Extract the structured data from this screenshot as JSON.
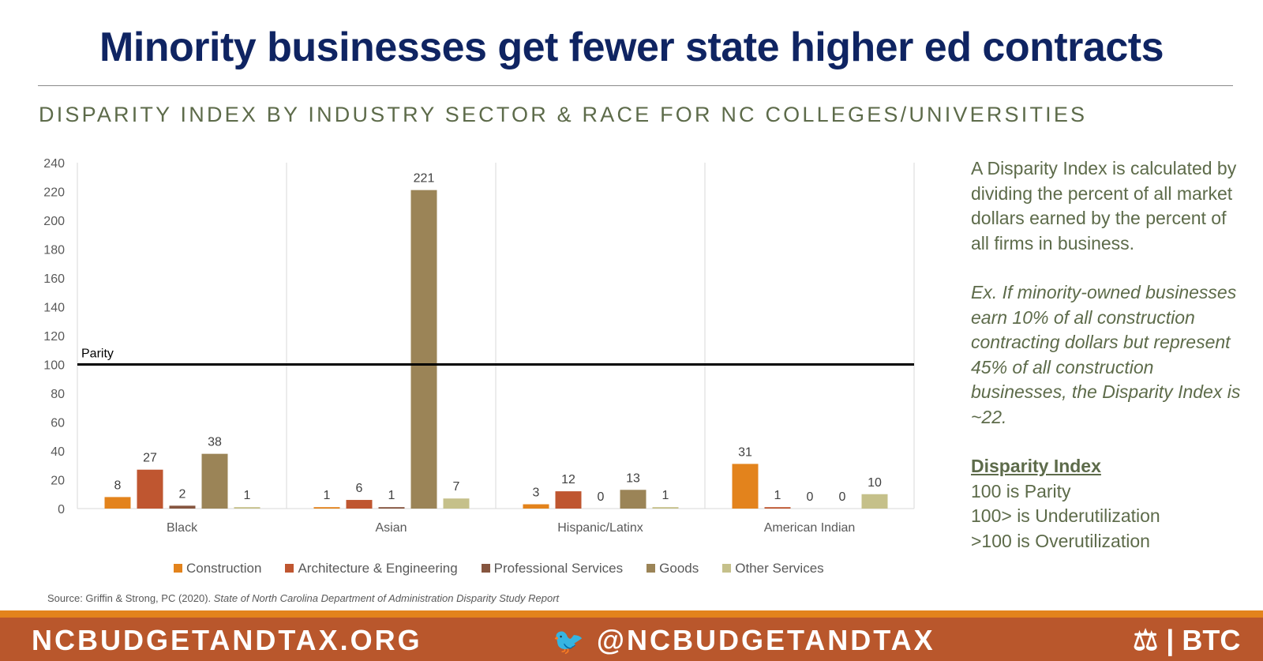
{
  "title": "Minority businesses get fewer state higher ed contracts",
  "subtitle": "DISPARITY INDEX BY INDUSTRY SECTOR & RACE FOR NC COLLEGES/UNIVERSITIES",
  "chart_data": {
    "type": "bar",
    "categories": [
      "Black",
      "Asian",
      "Hispanic/Latinx",
      "American Indian"
    ],
    "series": [
      {
        "name": "Construction",
        "color": "#e3831c",
        "values": [
          8,
          1,
          3,
          31
        ]
      },
      {
        "name": "Architecture & Engineering",
        "color": "#bf5630",
        "values": [
          27,
          6,
          12,
          1
        ]
      },
      {
        "name": "Professional Services",
        "color": "#86553f",
        "values": [
          2,
          1,
          0,
          0
        ]
      },
      {
        "name": "Goods",
        "color": "#9b8457",
        "values": [
          38,
          221,
          13,
          0
        ]
      },
      {
        "name": "Other Services",
        "color": "#c5c08a",
        "values": [
          1,
          7,
          1,
          10
        ]
      }
    ],
    "ylim": [
      0,
      240
    ],
    "yticks": [
      0,
      20,
      40,
      60,
      80,
      100,
      120,
      140,
      160,
      180,
      200,
      220,
      240
    ],
    "reference_line": {
      "value": 100,
      "label": "Parity"
    },
    "legend": "bottom"
  },
  "side": {
    "definition": "A Disparity Index is calculated by dividing the percent of all market dollars earned by the percent of all firms in business.",
    "example": "Ex. If minority-owned businesses earn 10% of all construction contracting dollars but represent 45% of all construction businesses, the Disparity Index is ~22.",
    "key_heading": "Disparity Index",
    "key_lines": [
      "100 is Parity",
      "100> is Underutilization",
      ">100 is Overutilization"
    ]
  },
  "source_plain": "Source: Griffin & Strong, PC (2020). ",
  "source_italic": "State of North Carolina Department of Administration Disparity Study Report",
  "footer": {
    "website": "NCBUDGETANDTAX.ORG",
    "twitter": "@NCBUDGETANDTAX",
    "logo": "BTC"
  }
}
